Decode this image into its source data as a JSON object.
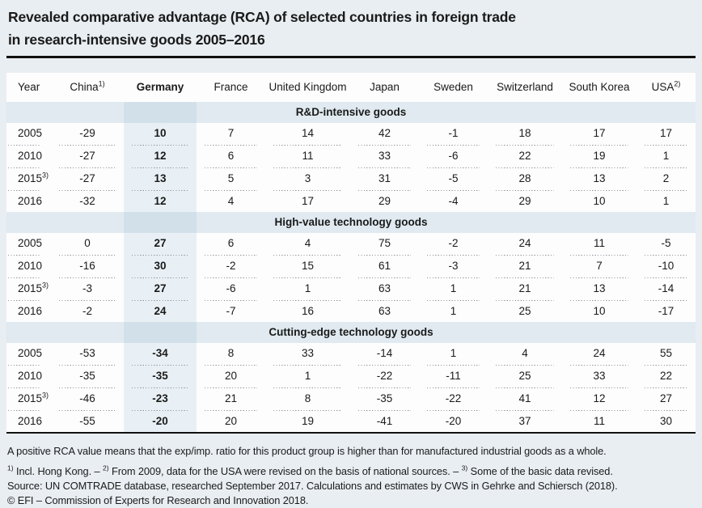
{
  "title": {
    "line1": "Revealed comparative advantage (RCA) of selected countries in foreign trade",
    "line2": "in research-intensive goods 2005–2016"
  },
  "table": {
    "columns": [
      {
        "key": "year",
        "label": "Year",
        "sup": ""
      },
      {
        "key": "china",
        "label": "China",
        "sup": "1)"
      },
      {
        "key": "germany",
        "label": "Germany",
        "sup": ""
      },
      {
        "key": "france",
        "label": "France",
        "sup": ""
      },
      {
        "key": "united-kingdom",
        "label": "United Kingdom",
        "sup": ""
      },
      {
        "key": "japan",
        "label": "Japan",
        "sup": ""
      },
      {
        "key": "sweden",
        "label": "Sweden",
        "sup": ""
      },
      {
        "key": "switzerland",
        "label": "Switzerland",
        "sup": ""
      },
      {
        "key": "south-korea",
        "label": "South Korea",
        "sup": ""
      },
      {
        "key": "usa",
        "label": "USA",
        "sup": "2)"
      }
    ],
    "sections": [
      {
        "title": "R&D-intensive goods",
        "rows": [
          {
            "year": "2005",
            "sup": "",
            "values": [
              "-29",
              "10",
              "7",
              "14",
              "42",
              "-1",
              "18",
              "17",
              "17"
            ]
          },
          {
            "year": "2010",
            "sup": "",
            "values": [
              "-27",
              "12",
              "6",
              "11",
              "33",
              "-6",
              "22",
              "19",
              "1"
            ]
          },
          {
            "year": "2015",
            "sup": "3)",
            "values": [
              "-27",
              "13",
              "5",
              "3",
              "31",
              "-5",
              "28",
              "13",
              "2"
            ]
          },
          {
            "year": "2016",
            "sup": "",
            "values": [
              "-32",
              "12",
              "4",
              "17",
              "29",
              "-4",
              "29",
              "10",
              "1"
            ]
          }
        ]
      },
      {
        "title": "High-value technology goods",
        "rows": [
          {
            "year": "2005",
            "sup": "",
            "values": [
              "0",
              "27",
              "6",
              "4",
              "75",
              "-2",
              "24",
              "11",
              "-5"
            ]
          },
          {
            "year": "2010",
            "sup": "",
            "values": [
              "-16",
              "30",
              "-2",
              "15",
              "61",
              "-3",
              "21",
              "7",
              "-10"
            ]
          },
          {
            "year": "2015",
            "sup": "3)",
            "values": [
              "-3",
              "27",
              "-6",
              "1",
              "63",
              "1",
              "21",
              "13",
              "-14"
            ]
          },
          {
            "year": "2016",
            "sup": "",
            "values": [
              "-2",
              "24",
              "-7",
              "16",
              "63",
              "1",
              "25",
              "10",
              "-17"
            ]
          }
        ]
      },
      {
        "title": "Cutting-edge technology goods",
        "rows": [
          {
            "year": "2005",
            "sup": "",
            "values": [
              "-53",
              "-34",
              "8",
              "33",
              "-14",
              "1",
              "4",
              "24",
              "55"
            ]
          },
          {
            "year": "2010",
            "sup": "",
            "values": [
              "-35",
              "-35",
              "20",
              "1",
              "-22",
              "-11",
              "25",
              "33",
              "22"
            ]
          },
          {
            "year": "2015",
            "sup": "3)",
            "values": [
              "-46",
              "-23",
              "21",
              "8",
              "-35",
              "-22",
              "41",
              "12",
              "27"
            ]
          },
          {
            "year": "2016",
            "sup": "",
            "values": [
              "-55",
              "-20",
              "20",
              "19",
              "-41",
              "-20",
              "37",
              "11",
              "30"
            ]
          }
        ]
      }
    ]
  },
  "footnotes": {
    "rca_note": "A positive RCA value means that the exp/imp. ratio for this product group is higher than for manufactured industrial goods as a whole.",
    "numbered": [
      {
        "sup": "1)",
        "text": " Incl. Hong Kong. –  "
      },
      {
        "sup": "2)",
        "text": " From 2009, data for the USA were revised on the basis of national sources. – "
      },
      {
        "sup": "3)",
        "text": " Some of the basic data revised."
      }
    ],
    "source": "Source: UN COMTRADE database, researched September 2017. Calculations and estimates by CWS in Gehrke and Schiersch (2018).",
    "copyright": "© EFI – Commission of Experts for Research and Innovation 2018."
  },
  "colors": {
    "page_background": "#e9eef2",
    "table_background": "#fdfdfe",
    "section_band": "#e0eaf0",
    "section_band_germany": "#d2e0ea",
    "germany_column_highlight": "#e9f0f5",
    "rule": "#101010",
    "dotted_separator": "#909498",
    "text": "#1a1a1a"
  }
}
